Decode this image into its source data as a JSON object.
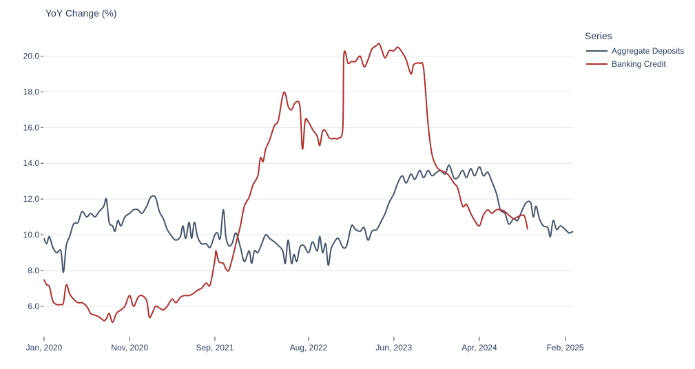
{
  "chart_data": {
    "type": "line",
    "title": "",
    "ylabel": "YoY Change (%)",
    "xlabel": "",
    "xlim": [
      "2020-01-01",
      "2025-03-01"
    ],
    "ylim": [
      4.3,
      21.6
    ],
    "x_ticks": [
      {
        "date": "2020-01-01",
        "label": "Jan, 2020"
      },
      {
        "date": "2020-11-01",
        "label": "Nov, 2020"
      },
      {
        "date": "2021-09-01",
        "label": "Sep, 2021"
      },
      {
        "date": "2022-08-01",
        "label": "Aug, 2022"
      },
      {
        "date": "2023-06-01",
        "label": "Jun, 2023"
      },
      {
        "date": "2024-04-01",
        "label": "Apr, 2024"
      },
      {
        "date": "2025-02-01",
        "label": "Feb, 2025"
      }
    ],
    "y_ticks": [
      {
        "value": 6,
        "label": "6.0"
      },
      {
        "value": 8,
        "label": "8.0"
      },
      {
        "value": 10,
        "label": "10.0"
      },
      {
        "value": 12,
        "label": "12.0"
      },
      {
        "value": 14,
        "label": "14.0"
      },
      {
        "value": 16,
        "label": "16.0"
      },
      {
        "value": 18,
        "label": "18.0"
      },
      {
        "value": 20,
        "label": "20.0"
      }
    ],
    "grid": true,
    "legend": {
      "title": "Series",
      "position": "top-right"
    },
    "series": [
      {
        "name": "Aggregate Deposits",
        "color": "#44546a",
        "points": [
          [
            "2020-01-01",
            9.8
          ],
          [
            "2020-01-10",
            9.5
          ],
          [
            "2020-01-20",
            9.9
          ],
          [
            "2020-02-01",
            9.3
          ],
          [
            "2020-02-15",
            9.0
          ],
          [
            "2020-03-01",
            9.1
          ],
          [
            "2020-03-10",
            7.9
          ],
          [
            "2020-03-20",
            9.4
          ],
          [
            "2020-04-01",
            9.9
          ],
          [
            "2020-04-15",
            10.6
          ],
          [
            "2020-05-01",
            10.7
          ],
          [
            "2020-05-15",
            11.3
          ],
          [
            "2020-06-01",
            11.0
          ],
          [
            "2020-06-15",
            11.2
          ],
          [
            "2020-07-01",
            11.0
          ],
          [
            "2020-07-15",
            11.3
          ],
          [
            "2020-08-01",
            11.6
          ],
          [
            "2020-08-10",
            12.0
          ],
          [
            "2020-08-20",
            10.7
          ],
          [
            "2020-09-01",
            10.5
          ],
          [
            "2020-09-10",
            10.2
          ],
          [
            "2020-09-20",
            10.8
          ],
          [
            "2020-10-01",
            10.5
          ],
          [
            "2020-10-15",
            11.0
          ],
          [
            "2020-11-01",
            11.2
          ],
          [
            "2020-11-15",
            11.4
          ],
          [
            "2020-12-01",
            11.4
          ],
          [
            "2020-12-15",
            11.2
          ],
          [
            "2021-01-01",
            11.6
          ],
          [
            "2021-01-15",
            12.1
          ],
          [
            "2021-02-01",
            12.1
          ],
          [
            "2021-02-15",
            11.3
          ],
          [
            "2021-03-01",
            10.9
          ],
          [
            "2021-03-15",
            10.3
          ],
          [
            "2021-04-01",
            9.9
          ],
          [
            "2021-04-15",
            9.7
          ],
          [
            "2021-05-01",
            9.9
          ],
          [
            "2021-05-10",
            10.5
          ],
          [
            "2021-05-20",
            9.8
          ],
          [
            "2021-06-01",
            10.7
          ],
          [
            "2021-06-10",
            9.8
          ],
          [
            "2021-06-20",
            10.7
          ],
          [
            "2021-07-01",
            9.9
          ],
          [
            "2021-07-15",
            9.5
          ],
          [
            "2021-08-01",
            9.5
          ],
          [
            "2021-08-15",
            9.3
          ],
          [
            "2021-09-01",
            10.0
          ],
          [
            "2021-09-10",
            10.1
          ],
          [
            "2021-09-20",
            9.8
          ],
          [
            "2021-10-01",
            11.4
          ],
          [
            "2021-10-10",
            9.9
          ],
          [
            "2021-10-20",
            9.4
          ],
          [
            "2021-11-01",
            9.5
          ],
          [
            "2021-11-15",
            10.1
          ],
          [
            "2021-12-01",
            9.3
          ],
          [
            "2021-12-15",
            8.5
          ],
          [
            "2022-01-01",
            9.1
          ],
          [
            "2022-01-10",
            8.4
          ],
          [
            "2022-01-20",
            9.1
          ],
          [
            "2022-02-01",
            9.0
          ],
          [
            "2022-02-15",
            9.5
          ],
          [
            "2022-03-01",
            10.0
          ],
          [
            "2022-03-15",
            9.8
          ],
          [
            "2022-04-01",
            9.6
          ],
          [
            "2022-04-15",
            9.4
          ],
          [
            "2022-05-01",
            9.1
          ],
          [
            "2022-05-10",
            8.4
          ],
          [
            "2022-05-20",
            9.7
          ],
          [
            "2022-06-01",
            8.4
          ],
          [
            "2022-06-10",
            8.9
          ],
          [
            "2022-06-20",
            8.5
          ],
          [
            "2022-07-01",
            9.3
          ],
          [
            "2022-07-15",
            9.4
          ],
          [
            "2022-08-01",
            9.0
          ],
          [
            "2022-08-15",
            9.6
          ],
          [
            "2022-09-01",
            9.1
          ],
          [
            "2022-09-10",
            9.9
          ],
          [
            "2022-09-20",
            9.0
          ],
          [
            "2022-10-01",
            9.5
          ],
          [
            "2022-10-10",
            8.3
          ],
          [
            "2022-10-20",
            9.2
          ],
          [
            "2022-11-01",
            9.6
          ],
          [
            "2022-11-15",
            9.8
          ],
          [
            "2022-12-01",
            9.3
          ],
          [
            "2022-12-15",
            9.4
          ],
          [
            "2023-01-01",
            10.5
          ],
          [
            "2023-01-15",
            10.3
          ],
          [
            "2023-02-01",
            10.2
          ],
          [
            "2023-02-15",
            10.4
          ],
          [
            "2023-03-01",
            9.7
          ],
          [
            "2023-03-15",
            10.2
          ],
          [
            "2023-04-01",
            10.3
          ],
          [
            "2023-04-15",
            10.7
          ],
          [
            "2023-05-01",
            11.2
          ],
          [
            "2023-05-15",
            11.8
          ],
          [
            "2023-06-01",
            12.3
          ],
          [
            "2023-06-15",
            12.9
          ],
          [
            "2023-07-01",
            13.3
          ],
          [
            "2023-07-15",
            12.9
          ],
          [
            "2023-08-01",
            13.4
          ],
          [
            "2023-08-15",
            13.1
          ],
          [
            "2023-09-01",
            13.6
          ],
          [
            "2023-09-15",
            13.2
          ],
          [
            "2023-10-01",
            13.6
          ],
          [
            "2023-10-15",
            13.3
          ],
          [
            "2023-11-01",
            13.5
          ],
          [
            "2023-11-15",
            13.6
          ],
          [
            "2023-12-01",
            13.4
          ],
          [
            "2023-12-15",
            13.9
          ],
          [
            "2024-01-01",
            13.2
          ],
          [
            "2024-01-15",
            13.2
          ],
          [
            "2024-02-01",
            13.6
          ],
          [
            "2024-02-15",
            13.2
          ],
          [
            "2024-03-01",
            13.7
          ],
          [
            "2024-03-15",
            13.3
          ],
          [
            "2024-04-01",
            13.8
          ],
          [
            "2024-04-15",
            13.3
          ],
          [
            "2024-05-01",
            13.5
          ],
          [
            "2024-05-15",
            13.0
          ],
          [
            "2024-06-01",
            12.3
          ],
          [
            "2024-06-15",
            11.4
          ],
          [
            "2024-07-01",
            11.2
          ],
          [
            "2024-07-15",
            10.6
          ],
          [
            "2024-08-01",
            10.9
          ],
          [
            "2024-08-15",
            10.8
          ],
          [
            "2024-09-01",
            11.4
          ],
          [
            "2024-09-15",
            11.8
          ],
          [
            "2024-10-01",
            11.8
          ],
          [
            "2024-10-10",
            11.0
          ],
          [
            "2024-10-20",
            11.6
          ],
          [
            "2024-11-01",
            10.9
          ],
          [
            "2024-11-15",
            10.5
          ],
          [
            "2024-12-01",
            10.4
          ],
          [
            "2024-12-10",
            9.9
          ],
          [
            "2024-12-20",
            10.8
          ],
          [
            "2025-01-01",
            10.3
          ],
          [
            "2025-01-15",
            10.5
          ],
          [
            "2025-02-01",
            10.3
          ],
          [
            "2025-02-15",
            10.1
          ],
          [
            "2025-03-01",
            10.2
          ]
        ]
      },
      {
        "name": "Banking Credit",
        "color": "#b22e2e",
        "points": [
          [
            "2020-01-01",
            7.5
          ],
          [
            "2020-01-10",
            7.2
          ],
          [
            "2020-01-20",
            7.1
          ],
          [
            "2020-02-01",
            6.3
          ],
          [
            "2020-02-15",
            6.1
          ],
          [
            "2020-03-01",
            6.1
          ],
          [
            "2020-03-10",
            6.2
          ],
          [
            "2020-03-20",
            7.2
          ],
          [
            "2020-04-01",
            6.7
          ],
          [
            "2020-04-15",
            6.4
          ],
          [
            "2020-05-01",
            6.2
          ],
          [
            "2020-05-15",
            6.2
          ],
          [
            "2020-06-01",
            6.0
          ],
          [
            "2020-06-15",
            5.6
          ],
          [
            "2020-07-01",
            5.5
          ],
          [
            "2020-07-15",
            5.4
          ],
          [
            "2020-08-01",
            5.2
          ],
          [
            "2020-08-10",
            5.3
          ],
          [
            "2020-08-20",
            5.6
          ],
          [
            "2020-09-01",
            5.1
          ],
          [
            "2020-09-15",
            5.6
          ],
          [
            "2020-10-01",
            5.8
          ],
          [
            "2020-10-15",
            6.0
          ],
          [
            "2020-11-01",
            6.6
          ],
          [
            "2020-11-15",
            6.0
          ],
          [
            "2020-12-01",
            6.5
          ],
          [
            "2020-12-15",
            6.6
          ],
          [
            "2021-01-01",
            6.3
          ],
          [
            "2021-01-10",
            5.4
          ],
          [
            "2021-01-20",
            5.6
          ],
          [
            "2021-02-01",
            6.0
          ],
          [
            "2021-02-15",
            5.9
          ],
          [
            "2021-03-01",
            5.8
          ],
          [
            "2021-03-15",
            6.0
          ],
          [
            "2021-04-01",
            6.4
          ],
          [
            "2021-04-15",
            6.2
          ],
          [
            "2021-05-01",
            6.5
          ],
          [
            "2021-05-15",
            6.6
          ],
          [
            "2021-06-01",
            6.6
          ],
          [
            "2021-06-15",
            6.7
          ],
          [
            "2021-07-01",
            6.9
          ],
          [
            "2021-07-15",
            7.0
          ],
          [
            "2021-08-01",
            7.3
          ],
          [
            "2021-08-15",
            7.2
          ],
          [
            "2021-09-01",
            8.6
          ],
          [
            "2021-09-05",
            9.1
          ],
          [
            "2021-09-15",
            8.5
          ],
          [
            "2021-10-01",
            8.4
          ],
          [
            "2021-10-10",
            8.1
          ],
          [
            "2021-10-20",
            8.0
          ],
          [
            "2021-11-01",
            8.6
          ],
          [
            "2021-11-15",
            9.5
          ],
          [
            "2021-12-01",
            10.5
          ],
          [
            "2021-12-15",
            11.6
          ],
          [
            "2022-01-01",
            12.1
          ],
          [
            "2022-01-15",
            12.8
          ],
          [
            "2022-02-01",
            13.3
          ],
          [
            "2022-02-10",
            14.3
          ],
          [
            "2022-02-20",
            14.1
          ],
          [
            "2022-03-01",
            14.8
          ],
          [
            "2022-03-15",
            15.3
          ],
          [
            "2022-04-01",
            16.1
          ],
          [
            "2022-04-15",
            16.4
          ],
          [
            "2022-05-01",
            17.8
          ],
          [
            "2022-05-10",
            17.9
          ],
          [
            "2022-05-20",
            17.2
          ],
          [
            "2022-06-01",
            17.0
          ],
          [
            "2022-06-15",
            17.4
          ],
          [
            "2022-07-01",
            17.2
          ],
          [
            "2022-07-10",
            14.8
          ],
          [
            "2022-07-20",
            16.4
          ],
          [
            "2022-08-01",
            16.3
          ],
          [
            "2022-08-15",
            15.9
          ],
          [
            "2022-09-01",
            15.5
          ],
          [
            "2022-09-10",
            15.0
          ],
          [
            "2022-09-20",
            15.8
          ],
          [
            "2022-10-01",
            15.8
          ],
          [
            "2022-10-15",
            15.4
          ],
          [
            "2022-11-01",
            15.4
          ],
          [
            "2022-11-15",
            15.4
          ],
          [
            "2022-12-01",
            16.0
          ],
          [
            "2022-12-05",
            20.1
          ],
          [
            "2022-12-20",
            19.6
          ],
          [
            "2023-01-01",
            19.7
          ],
          [
            "2023-01-15",
            19.7
          ],
          [
            "2023-02-01",
            20.0
          ],
          [
            "2023-02-15",
            19.4
          ],
          [
            "2023-03-01",
            19.8
          ],
          [
            "2023-03-15",
            20.4
          ],
          [
            "2023-04-01",
            20.6
          ],
          [
            "2023-04-10",
            20.7
          ],
          [
            "2023-04-20",
            20.3
          ],
          [
            "2023-05-01",
            19.9
          ],
          [
            "2023-05-15",
            20.3
          ],
          [
            "2023-06-01",
            20.3
          ],
          [
            "2023-06-15",
            20.5
          ],
          [
            "2023-07-01",
            20.2
          ],
          [
            "2023-07-15",
            19.8
          ],
          [
            "2023-08-01",
            19.0
          ],
          [
            "2023-08-10",
            19.5
          ],
          [
            "2023-08-20",
            19.6
          ],
          [
            "2023-09-01",
            19.6
          ],
          [
            "2023-09-15",
            19.3
          ],
          [
            "2023-10-01",
            16.2
          ],
          [
            "2023-10-15",
            14.5
          ],
          [
            "2023-11-01",
            13.8
          ],
          [
            "2023-11-15",
            13.6
          ],
          [
            "2023-12-01",
            13.5
          ],
          [
            "2023-12-15",
            13.3
          ],
          [
            "2024-01-01",
            12.9
          ],
          [
            "2024-01-15",
            12.6
          ],
          [
            "2024-02-01",
            11.6
          ],
          [
            "2024-02-15",
            11.7
          ],
          [
            "2024-03-01",
            11.2
          ],
          [
            "2024-03-15",
            10.8
          ],
          [
            "2024-04-01",
            10.5
          ],
          [
            "2024-04-15",
            11.1
          ],
          [
            "2024-05-01",
            11.4
          ],
          [
            "2024-05-15",
            11.2
          ],
          [
            "2024-06-01",
            11.4
          ],
          [
            "2024-06-15",
            11.4
          ],
          [
            "2024-07-01",
            11.3
          ],
          [
            "2024-07-15",
            11.1
          ],
          [
            "2024-08-01",
            10.9
          ],
          [
            "2024-08-15",
            11.0
          ],
          [
            "2024-09-01",
            11.1
          ],
          [
            "2024-09-10",
            11.0
          ],
          [
            "2024-09-20",
            10.3
          ]
        ]
      }
    ]
  }
}
